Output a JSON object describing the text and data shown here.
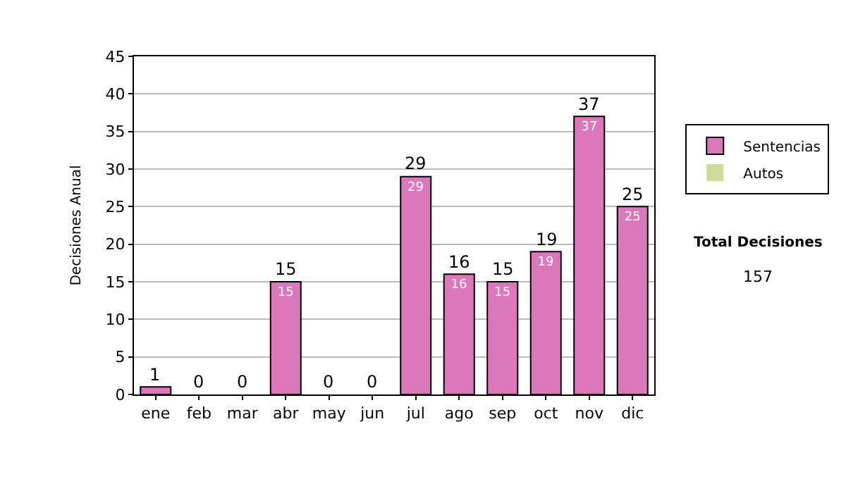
{
  "chart_data": {
    "type": "bar",
    "stacked": true,
    "ylabel": "Decisiones Anual",
    "categories": [
      "ene",
      "feb",
      "mar",
      "abr",
      "may",
      "jun",
      "jul",
      "ago",
      "sep",
      "oct",
      "nov",
      "dic"
    ],
    "series": [
      {
        "name": "Sentencias",
        "color": "#dd77bb",
        "values": [
          1,
          0,
          0,
          15,
          0,
          0,
          29,
          16,
          15,
          19,
          37,
          25
        ],
        "value_labels": [
          null,
          null,
          null,
          "15",
          null,
          null,
          "29",
          "16",
          "15",
          "19",
          "37",
          "25"
        ]
      },
      {
        "name": "Autos",
        "color": "#ccdd99",
        "values": [
          0,
          0,
          0,
          0,
          0,
          0,
          0,
          0,
          0,
          0,
          0,
          0
        ]
      }
    ],
    "totals": [
      "1",
      "0",
      "0",
      "15",
      "0",
      "0",
      "29",
      "16",
      "15",
      "19",
      "37",
      "25"
    ],
    "ylim": [
      0,
      45
    ],
    "yticks": [
      0,
      5,
      10,
      15,
      20,
      25,
      30,
      35,
      40,
      45
    ],
    "grid": "y",
    "legend": "right",
    "annotations": [
      "Total Decisiones",
      "157"
    ]
  }
}
